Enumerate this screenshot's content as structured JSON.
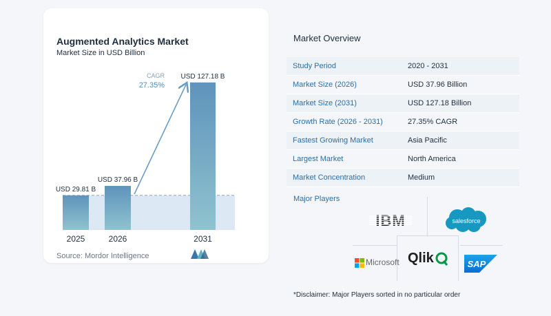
{
  "left_card": {
    "title": "Augmented Analytics Market",
    "subtitle": "Market Size in USD Billion",
    "source": "Source:  Mordor Intelligence"
  },
  "chart_data": {
    "type": "bar",
    "title": "Augmented Analytics Market",
    "subtitle": "Market Size in USD Billion",
    "categories": [
      "2025",
      "2026",
      "2031"
    ],
    "values": [
      29.81,
      37.96,
      127.18
    ],
    "data_labels": [
      "USD 29.81 B",
      "USD 37.96 B",
      "USD 127.18 B"
    ],
    "cagr_label": "CAGR",
    "cagr_value": "27.35%",
    "ylim": [
      0,
      130
    ],
    "grid": false,
    "colors": {
      "bar_top": "#5f93bb",
      "bar_bottom": "#8fc3cf",
      "arrow": "#6a9cc4",
      "shade": "#dce8f3",
      "dash": "#8fa6bd"
    }
  },
  "overview": {
    "title": "Market Overview",
    "rows": [
      {
        "label": "Study Period",
        "value": "2020 - 2031"
      },
      {
        "label": "Market Size (2026)",
        "value": "USD 37.96 Billion"
      },
      {
        "label": "Market Size (2031)",
        "value": "USD 127.18 Billion"
      },
      {
        "label": "Growth Rate (2026 - 2031)",
        "value": "27.35% CAGR"
      },
      {
        "label": "Fastest Growing Market",
        "value": "Asia Pacific"
      },
      {
        "label": "Largest Market",
        "value": "North America"
      },
      {
        "label": "Market Concentration",
        "value": "Medium"
      }
    ]
  },
  "major_players": {
    "title": "Major Players",
    "logos": {
      "ibm": "IBM",
      "salesforce": "salesforce",
      "microsoft": "Microsoft",
      "qlik": "Qlik",
      "sap": "SAP"
    }
  },
  "disclaimer": "*Disclaimer: Major Players sorted in no particular order"
}
